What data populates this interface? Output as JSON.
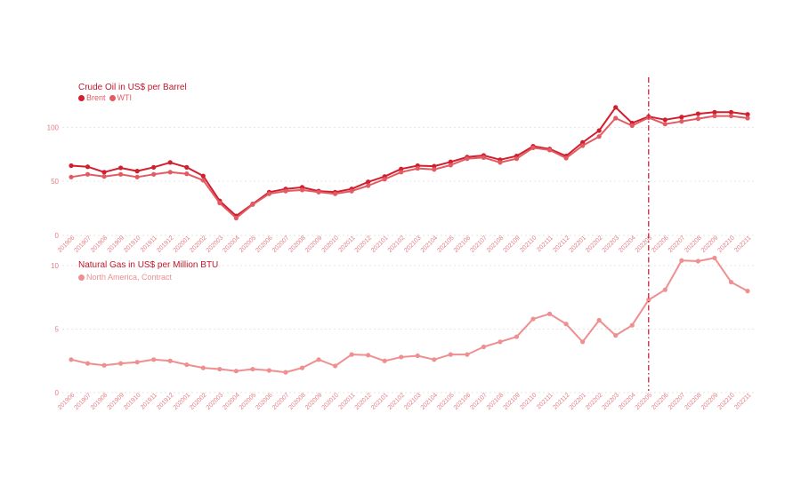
{
  "colors": {
    "brent": "#d11f2e",
    "wti": "#e35b62",
    "gas": "#ef8f90",
    "tick": "#e57b85",
    "grid": "#e6e6e6",
    "marker": "#d0202f"
  },
  "chart_data": [
    {
      "type": "line",
      "title": "Crude Oil in US$ per Barrel",
      "xlabel": "",
      "ylabel": "",
      "ylim": [
        0,
        120
      ],
      "yticks": [
        0,
        50,
        100
      ],
      "grid": true,
      "legend_position": "top-left",
      "categories": [
        "201906",
        "201907",
        "201908",
        "201909",
        "201910",
        "201911",
        "201912",
        "202001",
        "202002",
        "202003",
        "202004",
        "202005",
        "202006",
        "202007",
        "202008",
        "202009",
        "202010",
        "202011",
        "202012",
        "202101",
        "202102",
        "202103",
        "202104",
        "202105",
        "202106",
        "202107",
        "202108",
        "202109",
        "202110",
        "202111",
        "202112",
        "202201",
        "202202",
        "202203",
        "202204",
        "202205",
        "202206",
        "202207",
        "202208",
        "202209",
        "202210",
        "202211"
      ],
      "series": [
        {
          "name": "Brent",
          "color_key": "brent",
          "values": [
            64.5,
            63.5,
            58.5,
            62.5,
            59.5,
            63,
            67.5,
            63,
            55,
            32,
            18,
            29,
            40,
            43,
            44.5,
            41,
            40,
            43,
            49.5,
            54.5,
            61.5,
            64.5,
            64,
            68,
            72.5,
            74,
            70,
            73.5,
            82.5,
            80,
            73.5,
            86,
            97,
            118.5,
            104,
            110,
            107,
            109.5,
            112.5,
            114,
            114,
            112
          ]
        },
        {
          "name": "WTI",
          "color_key": "wti",
          "values": [
            54,
            56.5,
            54.5,
            56.5,
            54,
            56.5,
            58.5,
            57,
            51,
            30,
            16,
            28.5,
            38.5,
            41,
            42,
            40,
            38.5,
            41,
            46,
            52,
            58.5,
            62,
            61,
            65,
            71,
            72,
            67.5,
            71,
            81,
            79,
            71.5,
            83,
            91.5,
            108.5,
            101.5,
            109,
            103,
            105.5,
            108,
            110.5,
            110.5,
            108.5
          ]
        }
      ]
    },
    {
      "type": "line",
      "title": "Natural Gas in US$ per Million BTU",
      "xlabel": "",
      "ylabel": "",
      "ylim": [
        0,
        10
      ],
      "yticks": [
        0,
        5,
        10
      ],
      "grid": true,
      "legend_position": "top-left",
      "categories": [
        "201906",
        "201907",
        "201908",
        "201909",
        "201910",
        "201911",
        "201912",
        "202001",
        "202002",
        "202003",
        "202004",
        "202005",
        "202006",
        "202007",
        "202008",
        "202009",
        "202010",
        "202011",
        "202012",
        "202101",
        "202102",
        "202103",
        "202104",
        "202105",
        "202106",
        "202107",
        "202108",
        "202109",
        "202110",
        "202111",
        "202112",
        "202201",
        "202202",
        "202203",
        "202204",
        "202205",
        "202206",
        "202207",
        "202208",
        "202209",
        "202210",
        "202211"
      ],
      "series": [
        {
          "name": "North America, Contract",
          "color_key": "gas",
          "values": [
            2.6,
            2.3,
            2.15,
            2.3,
            2.4,
            2.6,
            2.5,
            2.2,
            1.95,
            1.85,
            1.7,
            1.85,
            1.75,
            1.6,
            1.95,
            2.6,
            2.1,
            3.0,
            2.95,
            2.5,
            2.8,
            2.9,
            2.6,
            3.0,
            3.0,
            3.6,
            4.0,
            4.4,
            5.8,
            6.2,
            5.4,
            4.0,
            5.7,
            4.5,
            5.3,
            7.3,
            8.1,
            10.4,
            10.35,
            10.6,
            8.7,
            8.0
          ]
        }
      ]
    }
  ],
  "reference_line_category": "202205"
}
